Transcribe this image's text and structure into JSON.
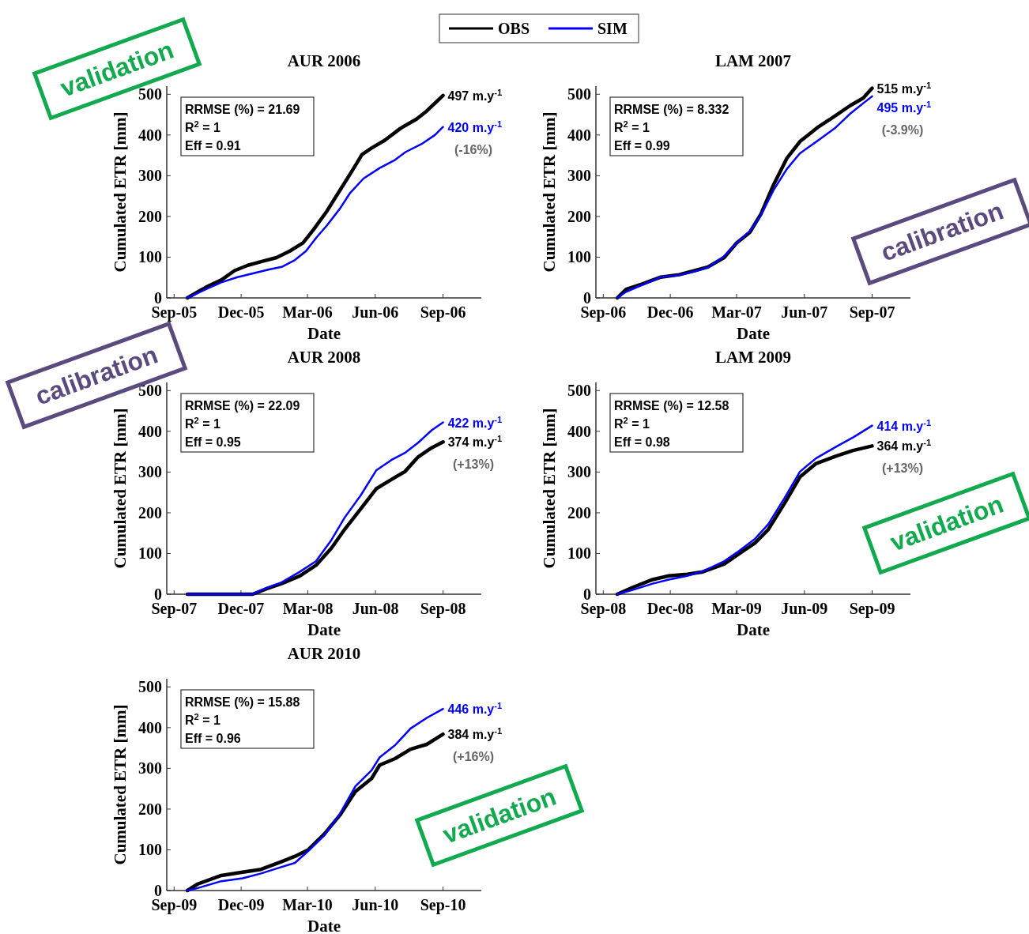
{
  "chart_data": [
    {
      "type": "line",
      "title": "AUR 2006",
      "xlabel": "Date",
      "ylabel": "Cumulated ETR [mm]",
      "legend": "top",
      "xlim": [
        "2005-08-22",
        "2006-10-23"
      ],
      "ylim": [
        0,
        520
      ],
      "xticks": [
        {
          "value": "2005-09-01",
          "label": "Sep-05"
        },
        {
          "value": "2005-12-01",
          "label": "Dec-05"
        },
        {
          "value": "2006-03-01",
          "label": "Mar-06"
        },
        {
          "value": "2006-06-01",
          "label": "Jun-06"
        },
        {
          "value": "2006-09-01",
          "label": "Sep-06"
        }
      ],
      "yticks": [
        0,
        100,
        200,
        300,
        400,
        500
      ],
      "series": [
        {
          "name": "OBS",
          "color": "#000000",
          "x": [
            "2005-09-19",
            "2005-10-14",
            "2005-11-04",
            "2005-11-22",
            "2005-12-10",
            "2005-12-28",
            "2006-01-18",
            "2006-02-05",
            "2006-02-23",
            "2006-03-09",
            "2006-03-27",
            "2006-04-14",
            "2006-05-02",
            "2006-05-14",
            "2006-05-27",
            "2006-06-14",
            "2006-07-05",
            "2006-07-27",
            "2006-08-10",
            "2006-09-01"
          ],
          "values": [
            0,
            26,
            44,
            67,
            80,
            89,
            99,
            115,
            135,
            167,
            212,
            264,
            316,
            352,
            368,
            387,
            416,
            439,
            459,
            497
          ]
        },
        {
          "name": "SIM",
          "color": "#0000ff",
          "x": [
            "2005-09-19",
            "2005-10-14",
            "2005-11-04",
            "2005-11-26",
            "2005-12-17",
            "2006-01-08",
            "2006-01-25",
            "2006-02-12",
            "2006-02-27",
            "2006-03-13",
            "2006-03-27",
            "2006-04-14",
            "2006-04-28",
            "2006-05-16",
            "2006-06-07",
            "2006-06-28",
            "2006-07-12",
            "2006-08-03",
            "2006-08-21",
            "2006-09-01"
          ],
          "values": [
            0,
            21,
            38,
            51,
            60,
            70,
            76,
            93,
            115,
            148,
            177,
            219,
            258,
            293,
            319,
            339,
            358,
            378,
            400,
            420
          ]
        }
      ],
      "annotations": [
        "RRMSE (%) = 21.69",
        "R$^{2}$ = 1",
        "Eff = 0.91",
        "(-16%)",
        "validation",
        {
          "text": "497 m.y$^{-1}$",
          "x": "2006-09-01",
          "y": 497
        },
        {
          "text": "420 m.y$^{-1}$",
          "x": "2006-09-01",
          "y": 420
        }
      ]
    },
    {
      "type": "line",
      "title": "LAM 2007",
      "xlabel": "Date",
      "ylabel": "Cumulated ETR [mm]",
      "xlim": [
        "2006-08-22",
        "2007-10-23"
      ],
      "ylim": [
        0,
        520
      ],
      "xticks": [
        {
          "value": "2006-09-01",
          "label": "Sep-06"
        },
        {
          "value": "2006-12-01",
          "label": "Dec-06"
        },
        {
          "value": "2007-03-01",
          "label": "Mar-07"
        },
        {
          "value": "2007-06-01",
          "label": "Jun-07"
        },
        {
          "value": "2007-09-01",
          "label": "Sep-07"
        }
      ],
      "yticks": [
        0,
        100,
        200,
        300,
        400,
        500
      ],
      "x": [
        "2006-09-20",
        "2006-10-02",
        "2006-10-24",
        "2006-11-18",
        "2006-12-13",
        "2007-01-03",
        "2007-01-21",
        "2007-02-12",
        "2007-03-01",
        "2007-03-19",
        "2007-04-03",
        "2007-04-20",
        "2007-05-08",
        "2007-05-26",
        "2007-06-20",
        "2007-07-12",
        "2007-08-02",
        "2007-08-20",
        "2007-09-01"
      ],
      "series": [
        {
          "color": "#000000",
          "values": [
            0,
            21,
            34,
            51,
            57,
            67,
            76,
            99,
            135,
            161,
            206,
            277,
            342,
            384,
            420,
            446,
            472,
            491,
            515
          ]
        },
        {
          "color": "#0000ff",
          "values": [
            0,
            15,
            32,
            51,
            56,
            65,
            75,
            102,
            135,
            164,
            203,
            264,
            316,
            355,
            387,
            416,
            452,
            478,
            495
          ]
        }
      ],
      "annotations": [
        "RRMSE (%) = 8.332",
        "R$^{2}$ = 1",
        "Eff = 0.99",
        "(-3.9%)",
        "calibration",
        {
          "text": "515 m.y$^{-1}$",
          "x": "2007-09-01",
          "y": 515
        },
        {
          "text": "495 m.y$^{-1}$",
          "x": "2007-09-01",
          "y": 495
        }
      ]
    },
    {
      "type": "line",
      "title": "AUR 2008",
      "xlabel": "Date",
      "ylabel": "Cumulated ETR [mm]",
      "xlim": [
        "2007-08-22",
        "2008-10-23"
      ],
      "ylim": [
        0,
        520
      ],
      "xticks": [
        {
          "value": "2007-09-01",
          "label": "Sep-07"
        },
        {
          "value": "2007-12-01",
          "label": "Dec-07"
        },
        {
          "value": "2008-03-01",
          "label": "Mar-08"
        },
        {
          "value": "2008-06-01",
          "label": "Jun-08"
        },
        {
          "value": "2008-09-01",
          "label": "Sep-08"
        }
      ],
      "yticks": [
        0,
        100,
        200,
        300,
        400,
        500
      ],
      "x": [
        "2007-09-19",
        "2007-12-17",
        "2008-01-04",
        "2008-01-25",
        "2008-02-19",
        "2008-03-12",
        "2008-04-02",
        "2008-04-20",
        "2008-05-12",
        "2008-06-02",
        "2008-06-23",
        "2008-07-11",
        "2008-07-29",
        "2008-08-16",
        "2008-09-01"
      ],
      "series": [
        {
          "color": "#000000",
          "values": [
            0,
            0,
            13,
            26,
            45,
            71,
            113,
            159,
            210,
            259,
            282,
            301,
            337,
            359,
            374
          ]
        },
        {
          "color": "#0000ff",
          "values": [
            0,
            0,
            15,
            29,
            55,
            81,
            133,
            188,
            243,
            304,
            330,
            347,
            372,
            402,
            422
          ]
        }
      ],
      "annotations": [
        "RRMSE (%) = 22.09",
        "R$^{2}$ = 1",
        "Eff = 0.95",
        "(+13%)",
        "calibration",
        {
          "text": "422 m.y$^{-1}$",
          "x": "2008-09-01",
          "y": 422
        },
        {
          "text": "374 m.y$^{-1}$",
          "x": "2008-09-01",
          "y": 374
        }
      ]
    },
    {
      "type": "line",
      "title": "LAM 2009",
      "xlabel": "Date",
      "ylabel": "Cumulated ETR [mm]",
      "xlim": [
        "2008-08-22",
        "2009-10-23"
      ],
      "ylim": [
        0,
        520
      ],
      "xticks": [
        {
          "value": "2008-09-01",
          "label": "Sep-08"
        },
        {
          "value": "2008-12-01",
          "label": "Dec-08"
        },
        {
          "value": "2009-03-01",
          "label": "Mar-09"
        },
        {
          "value": "2009-06-01",
          "label": "Jun-09"
        },
        {
          "value": "2009-09-01",
          "label": "Sep-09"
        }
      ],
      "yticks": [
        0,
        100,
        200,
        300,
        400,
        500
      ],
      "x": [
        "2008-09-20",
        "2008-10-10",
        "2008-11-07",
        "2008-11-29",
        "2008-12-24",
        "2009-01-14",
        "2009-02-12",
        "2009-03-05",
        "2009-03-26",
        "2009-04-13",
        "2009-05-05",
        "2009-05-26",
        "2009-06-17",
        "2009-07-15",
        "2009-08-06",
        "2009-09-01"
      ],
      "series": [
        {
          "color": "#000000",
          "values": [
            0,
            16,
            36,
            45,
            49,
            55,
            74,
            100,
            126,
            159,
            223,
            288,
            321,
            340,
            353,
            364
          ]
        },
        {
          "color": "#0000ff",
          "values": [
            0,
            10,
            26,
            36,
            45,
            56,
            81,
            107,
            136,
            172,
            236,
            301,
            334,
            363,
            385,
            414
          ]
        }
      ],
      "annotations": [
        "RRMSE (%) = 12.58",
        "R$^{2}$ = 1",
        "Eff = 0.98",
        "(+13%)",
        "validation",
        {
          "text": "414 m.y$^{-1}$",
          "x": "2009-09-01",
          "y": 414
        },
        {
          "text": "364 m.y$^{-1}$",
          "x": "2009-09-01",
          "y": 364
        }
      ]
    },
    {
      "type": "line",
      "title": "AUR 2010",
      "xlabel": "Date",
      "ylabel": "Cumulated ETR [mm]",
      "xlim": [
        "2009-08-22",
        "2010-10-23"
      ],
      "ylim": [
        0,
        520
      ],
      "xticks": [
        {
          "value": "2009-09-01",
          "label": "Sep-09"
        },
        {
          "value": "2009-12-01",
          "label": "Dec-09"
        },
        {
          "value": "2010-03-01",
          "label": "Mar-10"
        },
        {
          "value": "2010-06-01",
          "label": "Jun-10"
        },
        {
          "value": "2010-09-01",
          "label": "Sep-10"
        }
      ],
      "yticks": [
        0,
        100,
        200,
        300,
        400,
        500
      ],
      "x": [
        "2009-09-19",
        "2009-10-03",
        "2009-11-04",
        "2009-12-03",
        "2009-12-28",
        "2010-01-25",
        "2010-02-12",
        "2010-03-02",
        "2010-03-24",
        "2010-04-14",
        "2010-05-05",
        "2010-05-27",
        "2010-06-07",
        "2010-06-28",
        "2010-07-19",
        "2010-08-10",
        "2010-09-01"
      ],
      "series": [
        {
          "color": "#000000",
          "values": [
            0,
            16,
            37,
            45,
            52,
            71,
            84,
            100,
            139,
            185,
            243,
            275,
            308,
            324,
            347,
            359,
            384
          ]
        },
        {
          "color": "#0000ff",
          "values": [
            0,
            6,
            23,
            30,
            42,
            58,
            68,
            97,
            136,
            188,
            256,
            295,
            327,
            357,
            398,
            424,
            446
          ]
        }
      ],
      "annotations": [
        "RRMSE (%) = 15.88",
        "R$^{2}$ = 1",
        "Eff = 0.96",
        "(+16%)",
        "validation",
        {
          "text": "446 m.y$^{-1}$",
          "x": "2010-09-01",
          "y": 446
        },
        {
          "text": "384 m.y$^{-1}$",
          "x": "2010-09-01",
          "y": 384
        }
      ]
    }
  ]
}
